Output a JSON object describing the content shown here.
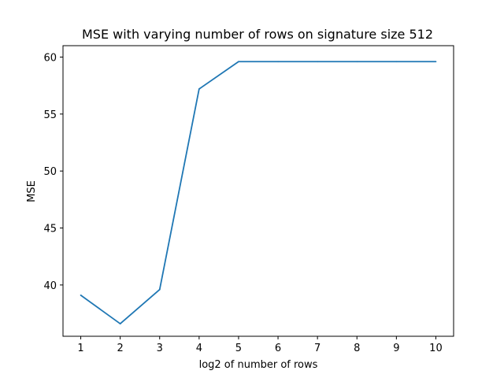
{
  "chart_data": {
    "type": "line",
    "title": "MSE with varying number of rows on signature size 512",
    "xlabel": "log2 of number of rows",
    "ylabel": "MSE",
    "x": [
      1,
      2,
      3,
      4,
      5,
      6,
      7,
      8,
      9,
      10
    ],
    "xticks": [
      "1",
      "2",
      "3",
      "4",
      "5",
      "6",
      "7",
      "8",
      "9",
      "10"
    ],
    "yticks": [
      "40",
      "45",
      "50",
      "55",
      "60"
    ],
    "xlim": [
      0.55,
      10.45
    ],
    "ylim": [
      35.5,
      61.0
    ],
    "grid": false,
    "series": [
      {
        "color": "#1f77b4",
        "values": [
          39.1,
          36.6,
          39.6,
          57.2,
          59.6,
          59.6,
          59.6,
          59.6,
          59.6,
          59.6
        ]
      }
    ]
  }
}
